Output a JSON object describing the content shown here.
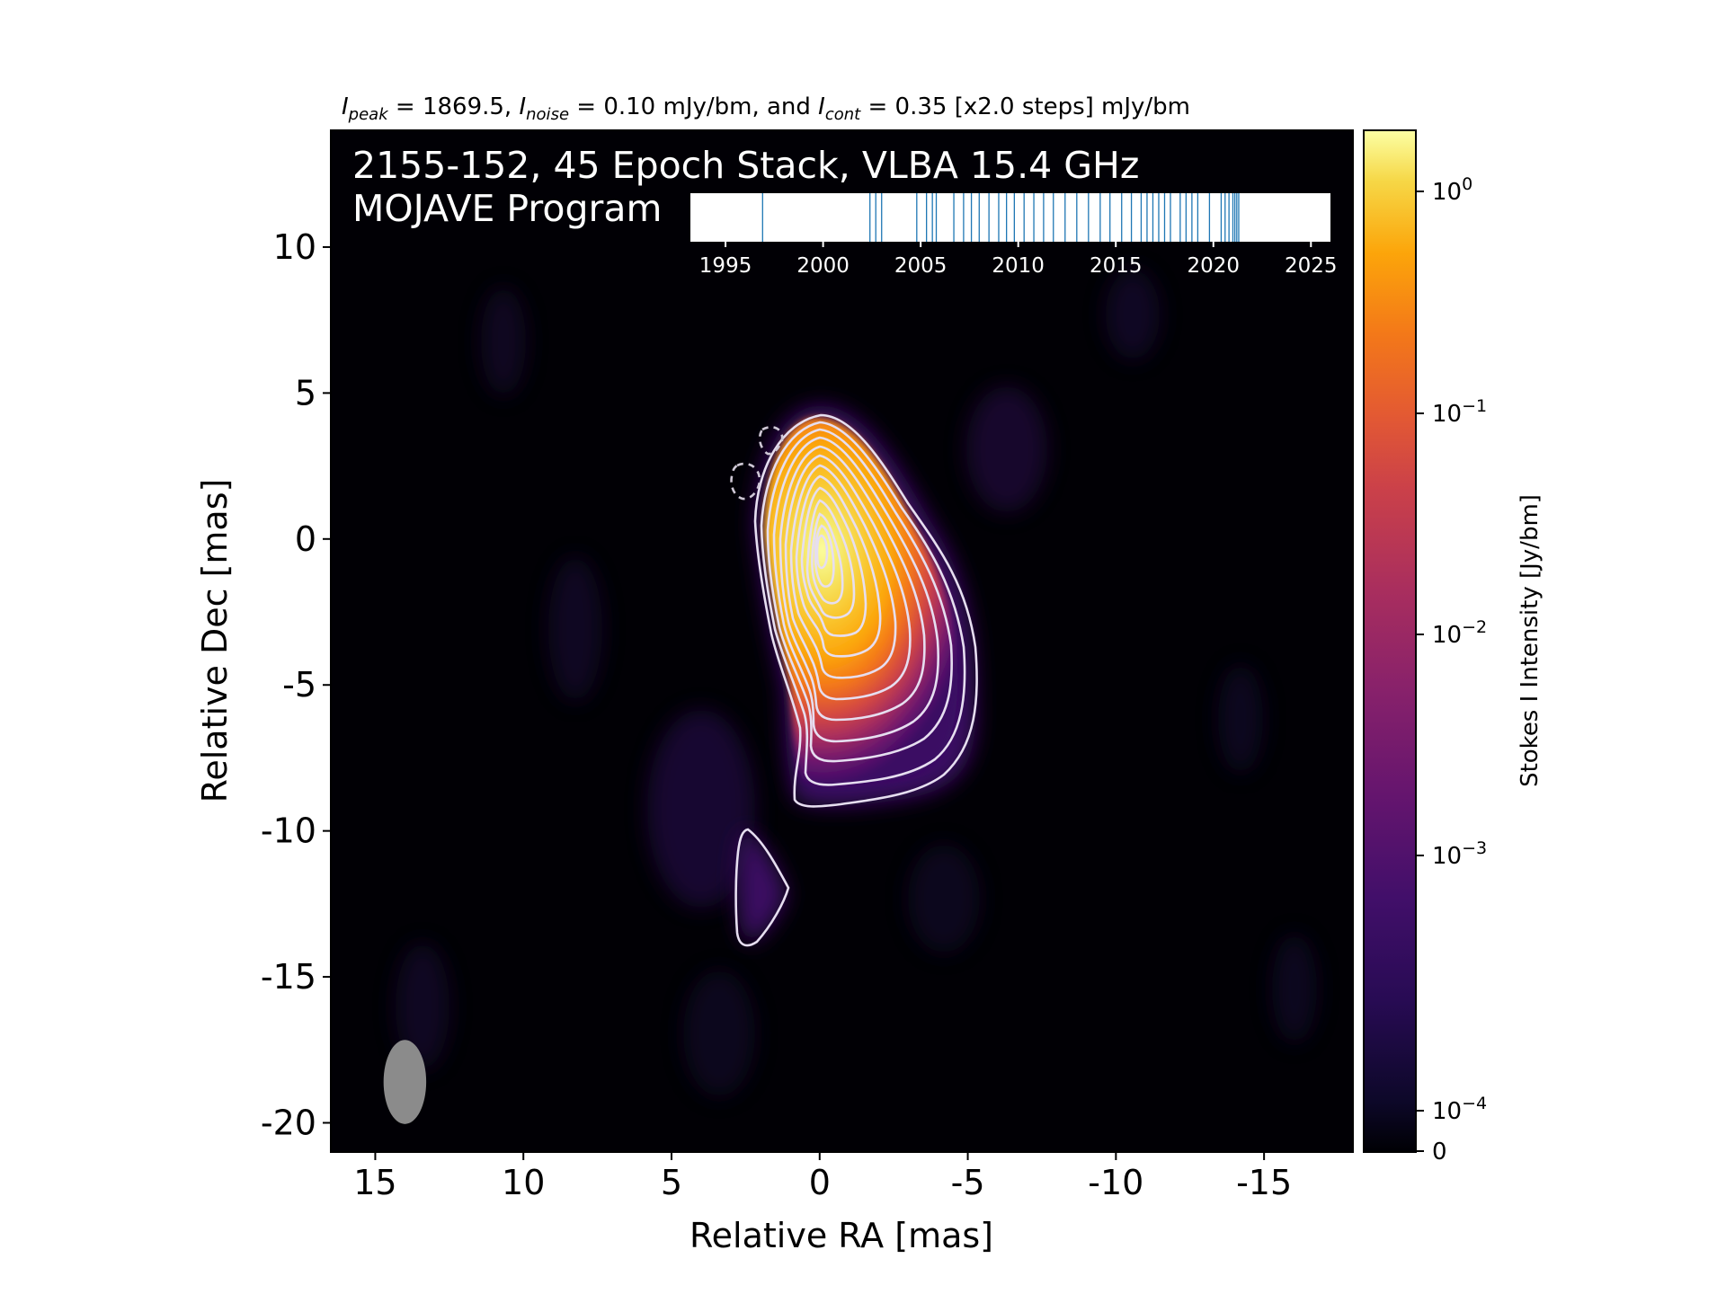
{
  "chart_data": {
    "type": "heatmap",
    "header": {
      "prefix_peak": "I",
      "sub_peak": "peak",
      "peak_text": " = 1869.5, ",
      "prefix_noise": "I",
      "sub_noise": "noise",
      "noise_text": " = 0.10 mJy/bm, and ",
      "prefix_cont": "I",
      "sub_cont": "cont",
      "cont_text": " = 0.35 [x2.0 steps] mJy/bm"
    },
    "title_line1": "2155-152, 45 Epoch Stack, VLBA 15.4 GHz",
    "title_line2": "MOJAVE Program",
    "xlabel": "Relative RA [mas]",
    "ylabel": "Relative Dec [mas]",
    "xlim": [
      16.5,
      -18.0
    ],
    "ylim": [
      -21.0,
      14.0
    ],
    "x_ticks": [
      {
        "value": 15,
        "label": "15"
      },
      {
        "value": 10,
        "label": "10"
      },
      {
        "value": 5,
        "label": "5"
      },
      {
        "value": 0,
        "label": "0"
      },
      {
        "value": -5,
        "label": "-5"
      },
      {
        "value": -10,
        "label": "-10"
      },
      {
        "value": -15,
        "label": "-15"
      }
    ],
    "y_ticks": [
      {
        "value": 10,
        "label": "10"
      },
      {
        "value": 5,
        "label": "5"
      },
      {
        "value": 0,
        "label": "0"
      },
      {
        "value": -5,
        "label": "-5"
      },
      {
        "value": -10,
        "label": "-10"
      },
      {
        "value": -15,
        "label": "-15"
      },
      {
        "value": -20,
        "label": "-20"
      }
    ],
    "colorbar": {
      "label": "Stokes I Intensity [Jy/bm]",
      "scale": "log",
      "ticks": [
        {
          "base": "10",
          "exp": "0"
        },
        {
          "base": "10",
          "exp": "−1"
        },
        {
          "base": "10",
          "exp": "−2"
        },
        {
          "base": "10",
          "exp": "−3"
        },
        {
          "base": "10",
          "exp": "−4"
        }
      ],
      "zero_label": "0",
      "colormap": "inferno"
    },
    "epoch_timeline": {
      "xlim": [
        1993.2,
        2026.0
      ],
      "ticks": [
        {
          "value": 1995,
          "label": "1995"
        },
        {
          "value": 2000,
          "label": "2000"
        },
        {
          "value": 2005,
          "label": "2005"
        },
        {
          "value": 2010,
          "label": "2010"
        },
        {
          "value": 2015,
          "label": "2015"
        },
        {
          "value": 2020,
          "label": "2020"
        },
        {
          "value": 2025,
          "label": "2025"
        }
      ],
      "epochs": [
        1996.9,
        2002.4,
        2002.7,
        2003.0,
        2004.8,
        2005.3,
        2005.6,
        2005.8,
        2006.7,
        2007.2,
        2007.6,
        2008.0,
        2008.5,
        2009.0,
        2009.4,
        2009.8,
        2010.3,
        2010.8,
        2011.3,
        2011.8,
        2012.4,
        2013.0,
        2013.6,
        2014.2,
        2014.7,
        2015.3,
        2015.8,
        2016.3,
        2016.6,
        2016.9,
        2017.2,
        2017.5,
        2017.8,
        2018.3,
        2018.6,
        2018.9,
        2019.2,
        2019.8,
        2020.4,
        2020.6,
        2020.8,
        2021.0,
        2021.1,
        2021.2,
        2021.3
      ],
      "line_color": "#1f77b4"
    },
    "peak_position": [
      0.0,
      -0.4
    ],
    "contour_levels_mJy": [
      0.35,
      0.7,
      1.4,
      2.8,
      5.6,
      11.2,
      22.4,
      44.8,
      89.6,
      179.2,
      358.4,
      716.8,
      1433.6
    ],
    "beam": {
      "major_mas": 2.4,
      "minor_mas": 1.2,
      "pa_deg": 0
    },
    "grid": false
  }
}
